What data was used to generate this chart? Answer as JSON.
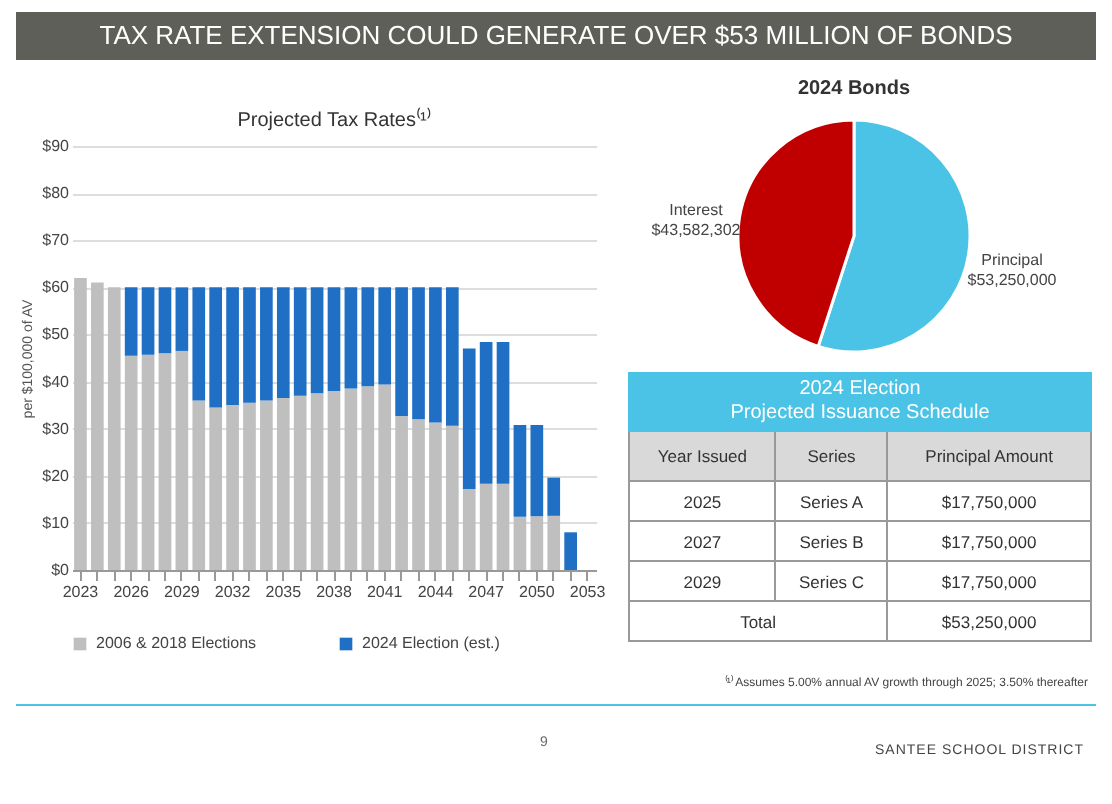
{
  "chart_data": [
    {
      "type": "bar",
      "title": "Projected Tax Rates⁽¹⁾",
      "ylabel": "per $100,000 of AV",
      "stacked": true,
      "legend": "bottom",
      "grid": "y",
      "annotations": [
        "TAX RATE EXTENSION COULD GENERATE OVER $53 MILLION OF BONDS",
        "⁽¹⁾ Assumes 5.00% annual AV growth through 2025; 3.50% thereafter",
        "9",
        "SANTEE SCHOOL DISTRICT"
      ],
      "categories": [
        "2023",
        null,
        null,
        "2026",
        null,
        null,
        "2029",
        null,
        null,
        "2032",
        null,
        null,
        "2035",
        null,
        null,
        "2038",
        null,
        null,
        "2041",
        null,
        null,
        "2044",
        null,
        null,
        "2047",
        null,
        null,
        "2050",
        null,
        null,
        "2053"
      ],
      "ylim": [
        0,
        90
      ],
      "yticks": [
        {
          "value": 0,
          "label": "$0"
        },
        {
          "value": 10,
          "label": "$10"
        },
        {
          "value": 20,
          "label": "$20"
        },
        {
          "value": 30,
          "label": "$30"
        },
        {
          "value": 40,
          "label": "$40"
        },
        {
          "value": 50,
          "label": "$50"
        },
        {
          "value": 60,
          "label": "$60"
        },
        {
          "value": 70,
          "label": "$70"
        },
        {
          "value": 80,
          "label": "$80"
        },
        {
          "value": 90,
          "label": "$90"
        }
      ],
      "series": [
        {
          "name": "2006 & 2018 Elections",
          "color": "#c0bfbf",
          "values": [
            62,
            61,
            60,
            45.5,
            45.7,
            46,
            46.5,
            36,
            34.5,
            35,
            35.5,
            36,
            36.5,
            37,
            37.5,
            38,
            38.5,
            39,
            39.4,
            32.7,
            32,
            31.3,
            30.6,
            17.2,
            18.3,
            18.3,
            11.3,
            11.4,
            11.5,
            0,
            0
          ]
        },
        {
          "name": "2024 Election (est.)",
          "color": "#1f6fc5",
          "values": [
            0,
            0,
            0,
            14.5,
            14.3,
            14,
            13.5,
            24,
            25.5,
            25,
            24.5,
            24,
            23.5,
            23,
            22.5,
            22,
            21.5,
            21,
            20.6,
            27.3,
            28,
            28.7,
            29.4,
            29.8,
            30.1,
            30.1,
            19.5,
            19.4,
            8.1,
            8,
            0
          ]
        }
      ]
    },
    {
      "type": "pie",
      "title": "2024 Bonds",
      "categories": [
        "Principal",
        "Interest"
      ],
      "values": [
        53250000,
        43582302
      ],
      "colors": [
        "#4bc3e6",
        "#c00000"
      ],
      "value_labels": [
        "$53,250,000",
        "$43,582,302"
      ]
    },
    {
      "type": "other",
      "title": "2024 Election\nProjected Issuance Schedule",
      "categories": [
        "Year Issued",
        "Series",
        "Principal Amount"
      ],
      "cell_labels": [
        [
          "2025",
          "Series A",
          "$17,750,000"
        ],
        [
          "2027",
          "Series B",
          "$17,750,000"
        ],
        [
          "2029",
          "Series C",
          "$17,750,000"
        ],
        [
          "Total",
          null,
          "$53,250,000"
        ]
      ]
    }
  ]
}
